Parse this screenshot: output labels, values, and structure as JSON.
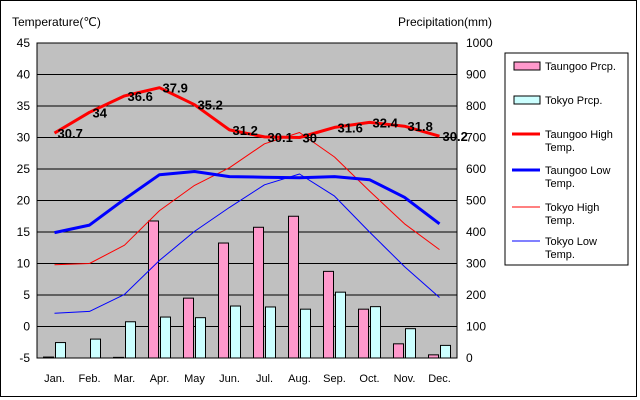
{
  "chart_data": {
    "type": "bar+line",
    "left_axis_title": "Temperature(℃)",
    "right_axis_title": "Precipitation(mm)",
    "left_ylim": [
      -5,
      45
    ],
    "left_ticks": [
      -5,
      0,
      5,
      10,
      15,
      20,
      25,
      30,
      35,
      40,
      45
    ],
    "right_ylim": [
      0,
      1000
    ],
    "right_ticks": [
      0,
      100,
      200,
      300,
      400,
      500,
      600,
      700,
      800,
      900,
      1000
    ],
    "categories": [
      "Jan.",
      "Feb.",
      "Mar.",
      "Apr.",
      "May",
      "Jun.",
      "Jul.",
      "Aug.",
      "Sep.",
      "Oct.",
      "Nov.",
      "Dec."
    ],
    "bar_series": [
      {
        "name": "Taungoo Prcp.",
        "color": "#ff99cc",
        "values": [
          3,
          0,
          2,
          435,
          190,
          365,
          415,
          450,
          275,
          155,
          45,
          10
        ]
      },
      {
        "name": "Tokyo Prcp.",
        "color": "#ccffff",
        "values": [
          49,
          60,
          115,
          130,
          128,
          165,
          162,
          155,
          209,
          163,
          93,
          40
        ]
      }
    ],
    "line_series": [
      {
        "name": "Taungoo High Temp.",
        "color": "#ff0000",
        "width": 3,
        "values": [
          30.7,
          34,
          36.6,
          37.9,
          35.2,
          31.2,
          30.1,
          30,
          31.6,
          32.4,
          31.8,
          30.2
        ],
        "labels": [
          "30.7",
          "34",
          "36.6",
          "37.9",
          "35.2",
          "31.2",
          "30.1",
          "30",
          "31.6",
          "32.4",
          "31.8",
          "30.2"
        ]
      },
      {
        "name": "Taungoo Low Temp.",
        "color": "#0000ff",
        "width": 3,
        "values": [
          14.9,
          16.1,
          20.2,
          24.1,
          24.6,
          23.8,
          23.7,
          23.6,
          23.8,
          23.3,
          20.5,
          16.3
        ]
      },
      {
        "name": "Tokyo High Temp.",
        "color": "#ff0000",
        "width": 1,
        "values": [
          9.8,
          10,
          12.9,
          18.4,
          22.4,
          25.2,
          29,
          30.8,
          26.9,
          21.5,
          16.3,
          12.2
        ]
      },
      {
        "name": "Tokyo Low Temp.",
        "color": "#0000ff",
        "width": 1,
        "values": [
          2.1,
          2.4,
          5.1,
          10.5,
          15.1,
          18.9,
          22.5,
          24.2,
          20.7,
          15.0,
          9.5,
          4.6
        ]
      }
    ],
    "legend": [
      {
        "label": "Taungoo Prcp.",
        "kind": "bar",
        "color": "#ff99cc"
      },
      {
        "label": "Tokyo Prcp.",
        "kind": "bar",
        "color": "#ccffff"
      },
      {
        "label": "Taungoo High Temp.",
        "kind": "line",
        "color": "#ff0000",
        "width": 3
      },
      {
        "label": "Taungoo Low Temp.",
        "kind": "line",
        "color": "#0000ff",
        "width": 3
      },
      {
        "label": "Tokyo High Temp.",
        "kind": "line",
        "color": "#ff0000",
        "width": 1
      },
      {
        "label": "Tokyo Low Temp.",
        "kind": "line",
        "color": "#0000ff",
        "width": 1
      }
    ],
    "legend_position": "right",
    "plot_background": "#c0c0c0",
    "grid": true
  }
}
